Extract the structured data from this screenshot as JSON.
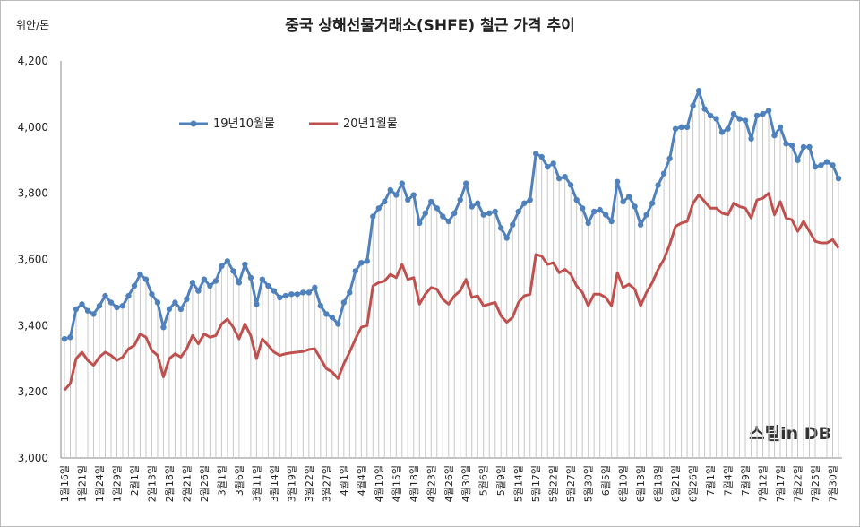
{
  "chart_data": {
    "type": "line",
    "title": "중국 상해선물거래소(SHFE) 철근 가격 추이",
    "y_unit": "위안/톤",
    "watermark": "스틸in DB",
    "categories": [
      "1월16일",
      null,
      null,
      "1월21일",
      null,
      null,
      "1월24일",
      null,
      null,
      "1월29일",
      null,
      null,
      "2월1일",
      null,
      null,
      "2월13일",
      null,
      null,
      "2월18일",
      null,
      null,
      "2월21일",
      null,
      null,
      "2월26일",
      null,
      null,
      "3월1일",
      null,
      null,
      "3월6일",
      null,
      null,
      "3월11일",
      null,
      null,
      "3월14일",
      null,
      null,
      "3월19일",
      null,
      null,
      "3월22일",
      null,
      null,
      "3월27일",
      null,
      null,
      "4월1일",
      null,
      null,
      "4월4일",
      null,
      null,
      "4월10일",
      null,
      null,
      "4월15일",
      null,
      null,
      "4월18일",
      null,
      null,
      "4월23일",
      null,
      null,
      "4월26일",
      null,
      null,
      "4월30일",
      null,
      null,
      "5월6일",
      null,
      null,
      "5월9일",
      null,
      null,
      "5월14일",
      null,
      null,
      "5월17일",
      null,
      null,
      "5월22일",
      null,
      null,
      "5월27일",
      null,
      null,
      "5월30일",
      null,
      null,
      "6월5일",
      null,
      null,
      "6월10일",
      null,
      null,
      "6월13일",
      null,
      null,
      "6월18일",
      null,
      null,
      "6월21일",
      null,
      null,
      "6월26일",
      null,
      null,
      "7월1일",
      null,
      null,
      "7월4일",
      null,
      null,
      "7월9일",
      null,
      null,
      "7월12일",
      null,
      null,
      "7월17일",
      null,
      null,
      "7월22일",
      null,
      null,
      "7월25일",
      null,
      null,
      "7월30일",
      null
    ],
    "series": [
      {
        "name": "19년10월물",
        "color": "#4f81bd",
        "values": [
          3360,
          3365,
          3450,
          3465,
          3445,
          3435,
          3460,
          3490,
          3470,
          3455,
          3460,
          3490,
          3520,
          3555,
          3540,
          3495,
          3470,
          3395,
          3450,
          3470,
          3450,
          3480,
          3530,
          3505,
          3540,
          3520,
          3535,
          3580,
          3595,
          3565,
          3530,
          3585,
          3545,
          3465,
          3540,
          3520,
          3505,
          3485,
          3490,
          3495,
          3495,
          3500,
          3500,
          3515,
          3460,
          3435,
          3425,
          3405,
          3470,
          3500,
          3565,
          3590,
          3595,
          3730,
          3755,
          3775,
          3810,
          3795,
          3830,
          3780,
          3795,
          3710,
          3740,
          3775,
          3755,
          3730,
          3715,
          3740,
          3780,
          3830,
          3760,
          3770,
          3735,
          3740,
          3745,
          3695,
          3665,
          3705,
          3745,
          3770,
          3780,
          3920,
          3910,
          3880,
          3890,
          3845,
          3850,
          3825,
          3780,
          3755,
          3710,
          3745,
          3750,
          3735,
          3715,
          3835,
          3775,
          3790,
          3760,
          3705,
          3735,
          3770,
          3825,
          3860,
          3905,
          3995,
          4000,
          4000,
          4065,
          4110,
          4055,
          4035,
          4025,
          3985,
          3995,
          4040,
          4025,
          4020,
          3965,
          4035,
          4040,
          4050,
          3975,
          4000,
          3950,
          3945,
          3900,
          3940,
          3940,
          3880,
          3885,
          3895,
          3885,
          3845
        ]
      },
      {
        "name": "20년1월물",
        "color": "#c0504d",
        "values": [
          3205,
          3225,
          3300,
          3320,
          3295,
          3280,
          3305,
          3320,
          3310,
          3295,
          3305,
          3330,
          3340,
          3375,
          3365,
          3325,
          3310,
          3245,
          3300,
          3315,
          3305,
          3330,
          3370,
          3345,
          3375,
          3365,
          3370,
          3405,
          3420,
          3395,
          3360,
          3405,
          3370,
          3300,
          3360,
          3340,
          3320,
          3310,
          3315,
          3318,
          3320,
          3322,
          3328,
          3330,
          3300,
          3270,
          3260,
          3240,
          3285,
          3320,
          3360,
          3395,
          3400,
          3520,
          3530,
          3535,
          3555,
          3545,
          3585,
          3540,
          3545,
          3465,
          3495,
          3515,
          3510,
          3480,
          3465,
          3490,
          3505,
          3540,
          3485,
          3490,
          3460,
          3465,
          3470,
          3430,
          3410,
          3425,
          3470,
          3490,
          3495,
          3615,
          3610,
          3585,
          3590,
          3560,
          3570,
          3555,
          3520,
          3500,
          3460,
          3495,
          3495,
          3485,
          3460,
          3560,
          3515,
          3525,
          3510,
          3460,
          3500,
          3530,
          3570,
          3600,
          3645,
          3700,
          3710,
          3715,
          3770,
          3795,
          3775,
          3755,
          3755,
          3740,
          3735,
          3770,
          3760,
          3755,
          3725,
          3780,
          3785,
          3800,
          3735,
          3775,
          3725,
          3720,
          3685,
          3715,
          3685,
          3655,
          3650,
          3650,
          3660,
          3635
        ]
      }
    ],
    "ylim": [
      3000,
      4200
    ],
    "yticks": [
      {
        "value": 3000,
        "label": "3,000"
      },
      {
        "value": 3200,
        "label": "3,200"
      },
      {
        "value": 3400,
        "label": "3,400"
      },
      {
        "value": 3600,
        "label": "3,600"
      },
      {
        "value": 3800,
        "label": "3,800"
      },
      {
        "value": 4000,
        "label": "4,000"
      },
      {
        "value": 4200,
        "label": "4,200"
      }
    ],
    "drop_lines": true,
    "legend": "upper left"
  }
}
